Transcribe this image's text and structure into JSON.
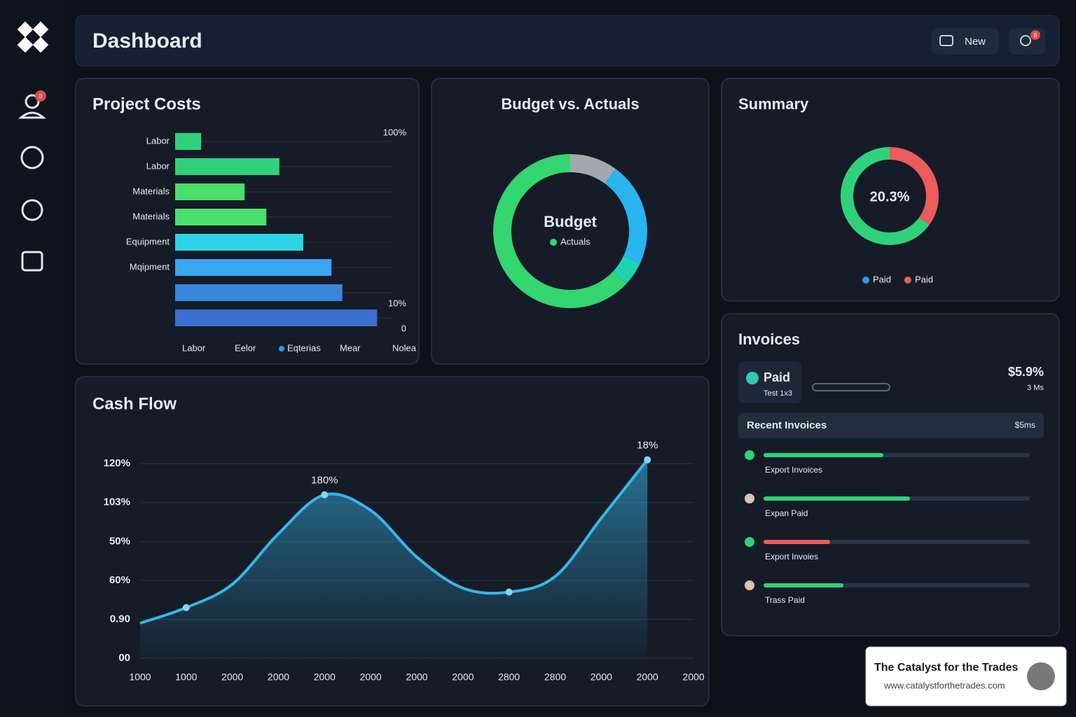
{
  "header": {
    "title": "Dashboard",
    "button": "New",
    "badge": "8"
  },
  "sidebar": {
    "badge": "8"
  },
  "project_costs": {
    "title": "Project Costs",
    "type": "bar",
    "categories": [
      "Labor",
      "Labor",
      "Materials",
      "Materials",
      "Equipment",
      "Mqipment",
      null,
      null
    ],
    "values": [
      12,
      48,
      32,
      42,
      59,
      72,
      77,
      93
    ],
    "colors": [
      "#2fd27a",
      "#2fd27a",
      "#4ade6a",
      "#4ade6a",
      "#2ed3e6",
      "#3aa6ee",
      "#3a86dc",
      "#3a6fcf"
    ],
    "xlim": [
      0,
      100
    ],
    "side_labels": [
      "100%",
      "10%",
      "0"
    ],
    "x_labels": [
      "Labor",
      "Eelor",
      "Eqterias",
      "Mear",
      "Nolea"
    ]
  },
  "budget": {
    "title": "Budget vs. Actuals",
    "type": "donut",
    "center": "Budget",
    "legend": "Actuals",
    "values": [
      10,
      22,
      5,
      63
    ],
    "colors": [
      "#a3a8ad",
      "#2ab4f0",
      "#20d3b0",
      "#33d66f"
    ]
  },
  "summary": {
    "title": "Summary",
    "type": "donut",
    "center": "20.3%",
    "values": [
      35,
      65
    ],
    "colors": [
      "#ec5b5b",
      "#2fd27a"
    ],
    "legend": [
      {
        "name": "Paid",
        "color": "#2a9ee8"
      },
      {
        "name": "Paid",
        "color": "#ec5b5b"
      }
    ]
  },
  "invoices": {
    "title": "Invoices",
    "status": "Paid",
    "status_sub": "Test 1x3",
    "amount": "$5.9%",
    "amount_sub": "3 Ms",
    "recent_title": "Recent Invoices",
    "recent_amount": "$5ms",
    "rows": [
      {
        "name": "Export Invoices",
        "color": "#2fd27a",
        "progress": 45
      },
      {
        "name": "Expan Paid",
        "color": "#2fd27a",
        "progress": 55
      },
      {
        "name": "Export Invoies",
        "color": "#ec5b5b",
        "progress": 25
      },
      {
        "name": "Trass Paid",
        "color": "#2fd27a",
        "progress": 30
      }
    ]
  },
  "cash_flow": {
    "title": "Cash Flow",
    "type": "area",
    "color": "#38b6e8",
    "x_labels": [
      "1000",
      "1000",
      "2000",
      "2000",
      "2000",
      "2000",
      "2000",
      "2000",
      "2800",
      "2800",
      "2000",
      "2000",
      "2000"
    ],
    "values": [
      0.9,
      1.3,
      1.9,
      3.2,
      4.2,
      3.8,
      2.6,
      1.8,
      1.7,
      2.1,
      3.6,
      5.1,
      null
    ],
    "markers": [
      1,
      4,
      8,
      11
    ],
    "annotations": [
      {
        "text": "180%",
        "index": 4
      },
      {
        "text": "18%",
        "index": 11
      }
    ],
    "ylim": [
      0,
      5.4
    ],
    "yticks": [
      {
        "value": 0,
        "label": "00"
      },
      {
        "value": 1,
        "label": "0.90"
      },
      {
        "value": 2,
        "label": "60%"
      },
      {
        "value": 3,
        "label": "50%"
      },
      {
        "value": 4,
        "label": "103%"
      },
      {
        "value": 5,
        "label": "120%"
      }
    ]
  },
  "branding": {
    "name": "The Catalyst for the Trades",
    "url": "www.catalystforthetrades.com"
  }
}
